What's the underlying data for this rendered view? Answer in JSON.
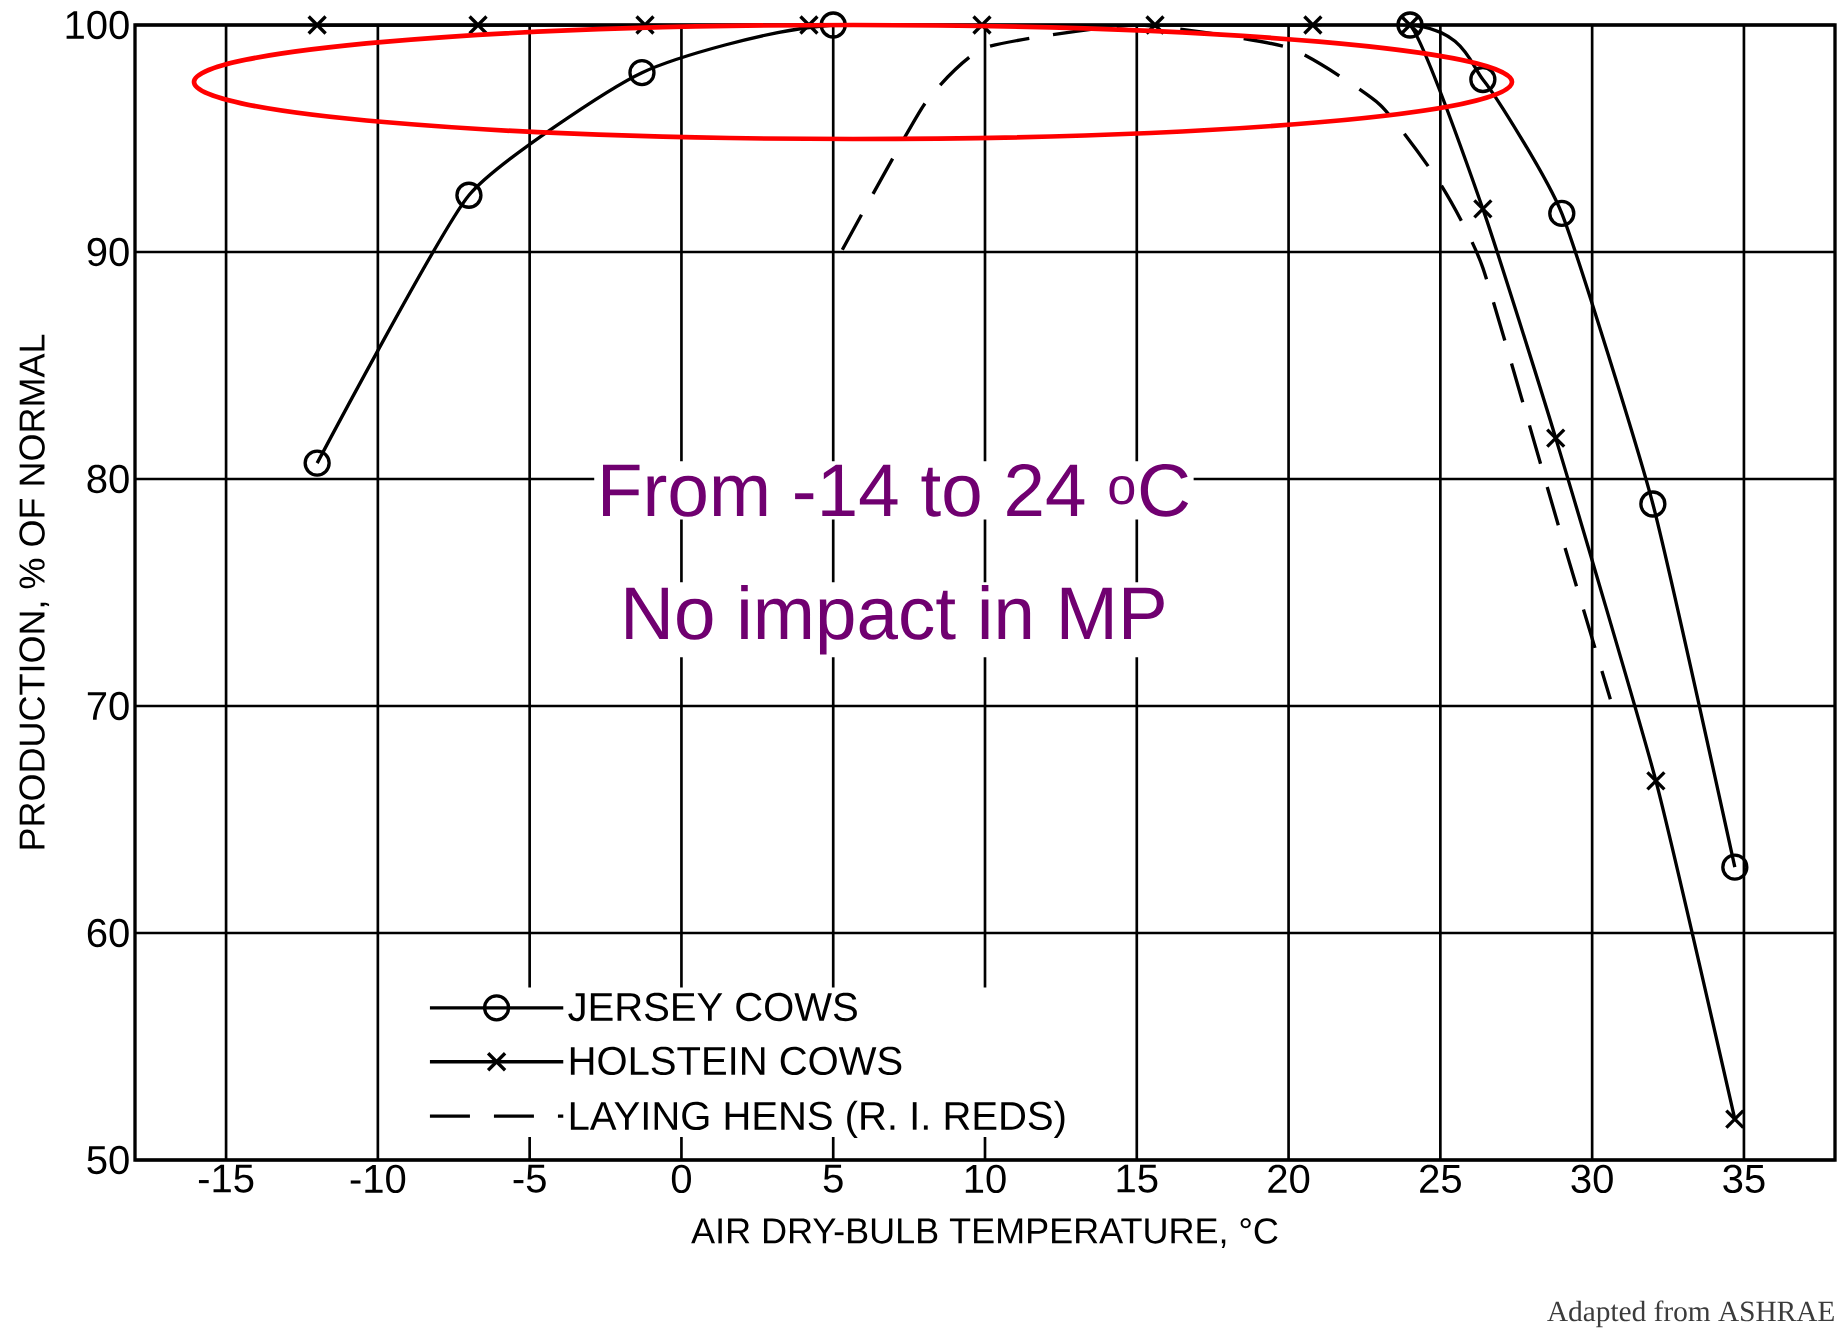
{
  "chart_data": {
    "type": "line",
    "xlabel": "AIR DRY-BULB TEMPERATURE, °C",
    "ylabel": "PRODUCTION, % OF NORMAL",
    "xlim": [
      -18,
      38
    ],
    "ylim": [
      50,
      100
    ],
    "xticks": [
      -15,
      -10,
      -5,
      0,
      5,
      10,
      15,
      20,
      25,
      30,
      35
    ],
    "yticks": [
      50,
      60,
      70,
      80,
      90,
      100
    ],
    "grid": true,
    "legend": "bottom left",
    "series": [
      {
        "name": "JERSEY COWS",
        "color": "#000000",
        "marker": "circle",
        "x": [
          -12,
          -7,
          -1.3,
          5,
          24,
          26.4,
          29,
          32,
          34.7
        ],
        "values": [
          80.7,
          92.5,
          97.9,
          100,
          100,
          97.6,
          91.7,
          78.9,
          62.9
        ]
      },
      {
        "name": "HOLSTEIN COWS",
        "color": "#000000",
        "marker": "cross",
        "x": [
          -12,
          -6.7,
          -1.2,
          4.2,
          9.9,
          15.6,
          20.8,
          24,
          26.4,
          28.8,
          32.1,
          34.7
        ],
        "values": [
          100,
          100,
          100,
          100,
          100,
          100,
          100,
          100,
          91.9,
          81.8,
          66.7,
          51.8
        ]
      },
      {
        "name": "LAYING HENS (R. I. REDS)",
        "color": "#000000",
        "marker": "none",
        "line_style": "dashed",
        "x": [
          5.3,
          8,
          10,
          15,
          20,
          23,
          25,
          26.4,
          28.9,
          30.6
        ],
        "values": [
          90.1,
          96.5,
          99,
          100,
          99,
          96.5,
          93,
          89.3,
          77.9,
          70.3
        ]
      }
    ],
    "annotations": [
      "From -14 to 24 $^{o}$C",
      "No impact in MP",
      "Adapted from ASHRAE"
    ]
  }
}
